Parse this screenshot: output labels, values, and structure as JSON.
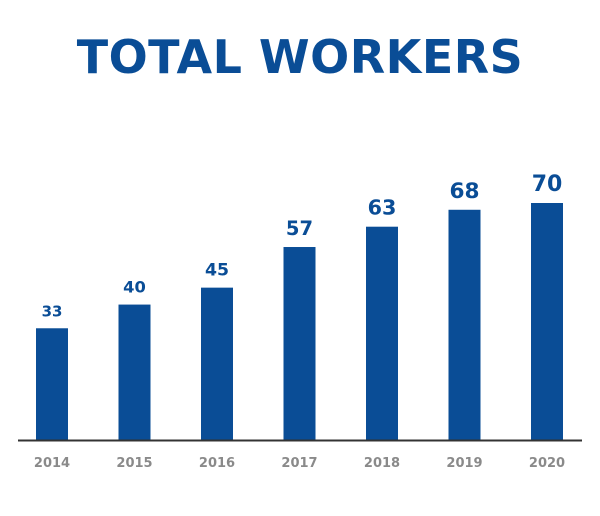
{
  "colors": {
    "bar": "#0a4d96",
    "title": "#0a4d96",
    "value_label": "#0a4d96",
    "tick_label": "#8a8a8a",
    "axis": "#333333"
  },
  "chart_data": {
    "type": "bar",
    "title": "TOTAL WORKERS",
    "xlabel": "",
    "ylabel": "",
    "categories": [
      "2014",
      "2015",
      "2016",
      "2017",
      "2018",
      "2019",
      "2020"
    ],
    "values": [
      33,
      40,
      45,
      57,
      63,
      68,
      70
    ],
    "ylim": [
      0,
      70
    ],
    "grid": false,
    "legend": "none",
    "data_labels": true
  }
}
